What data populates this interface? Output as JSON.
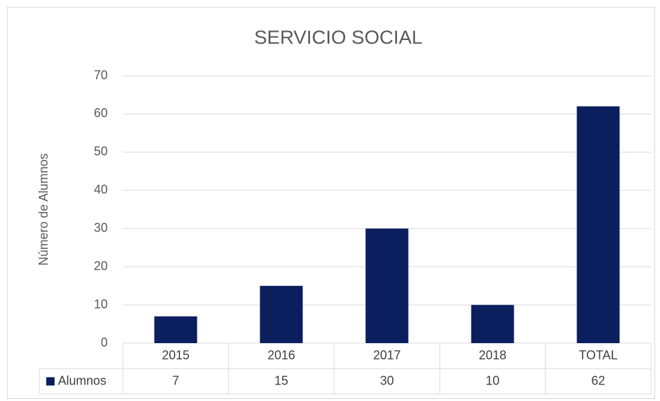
{
  "chart_data": {
    "type": "bar",
    "title": "SERVICIO SOCIAL",
    "y_label": "Número de Alumnos",
    "categories": [
      "2015",
      "2016",
      "2017",
      "2018",
      "TOTAL"
    ],
    "series": [
      {
        "name": "Alumnos",
        "color": "#0b1f5e",
        "values": [
          7,
          15,
          30,
          10,
          62
        ]
      }
    ],
    "ylim": [
      0,
      70
    ],
    "yticks": [
      0,
      10,
      20,
      30,
      40,
      50,
      60,
      70
    ],
    "grid": true,
    "data_table": true
  }
}
